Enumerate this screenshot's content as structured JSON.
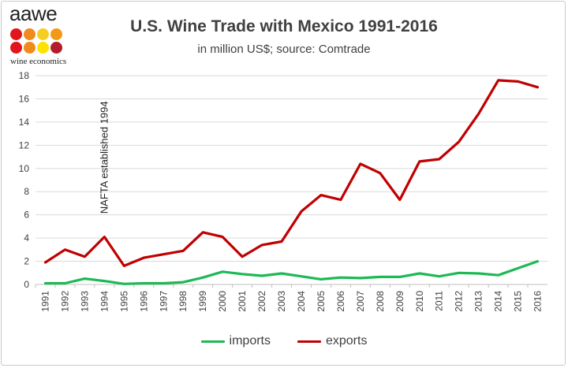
{
  "logo": {
    "text": "aawe",
    "subtext": "wine economics",
    "dot_colors": [
      "#e0161b",
      "#f08a1c",
      "#f6cf1e",
      "#f29a17",
      "#e0161b",
      "#f08a1c",
      "#ffe200",
      "#b41c2b"
    ]
  },
  "chart_data": {
    "type": "line",
    "title": "U.S. Wine Trade with Mexico 1991-2016",
    "subtitle": "in million US$; source: Comtrade",
    "xlabel": "",
    "ylabel": "",
    "ylim": [
      0,
      18
    ],
    "yticks": [
      "0",
      "2",
      "4",
      "6",
      "8",
      "10",
      "12",
      "14",
      "16",
      "18"
    ],
    "categories": [
      "1991",
      "1992",
      "1993",
      "1994",
      "1995",
      "1996",
      "1997",
      "1998",
      "1999",
      "2000",
      "2001",
      "2002",
      "2003",
      "2004",
      "2005",
      "2006",
      "2007",
      "2008",
      "2009",
      "2010",
      "2011",
      "2012",
      "2013",
      "2014",
      "2015",
      "2016"
    ],
    "series": [
      {
        "name": "imports",
        "color": "#1db954",
        "values": [
          0.1,
          0.1,
          0.5,
          0.3,
          0.05,
          0.1,
          0.1,
          0.2,
          0.6,
          1.1,
          0.9,
          0.75,
          0.95,
          0.7,
          0.45,
          0.6,
          0.55,
          0.65,
          0.65,
          0.95,
          0.7,
          1.0,
          0.95,
          0.8,
          1.4,
          2.0
        ]
      },
      {
        "name": "exports",
        "color": "#c00000",
        "values": [
          1.9,
          3.0,
          2.4,
          4.1,
          1.6,
          2.3,
          2.6,
          2.9,
          4.5,
          4.1,
          2.4,
          3.4,
          3.7,
          6.3,
          7.7,
          7.3,
          10.4,
          9.6,
          7.3,
          10.6,
          10.8,
          12.3,
          14.7,
          17.6,
          17.5,
          17.0
        ]
      }
    ],
    "annotations": [
      {
        "text": "NAFTA established 1994",
        "x": "1994",
        "y": 15.8
      }
    ],
    "grid": "horizontal",
    "legend_position": "bottom"
  }
}
